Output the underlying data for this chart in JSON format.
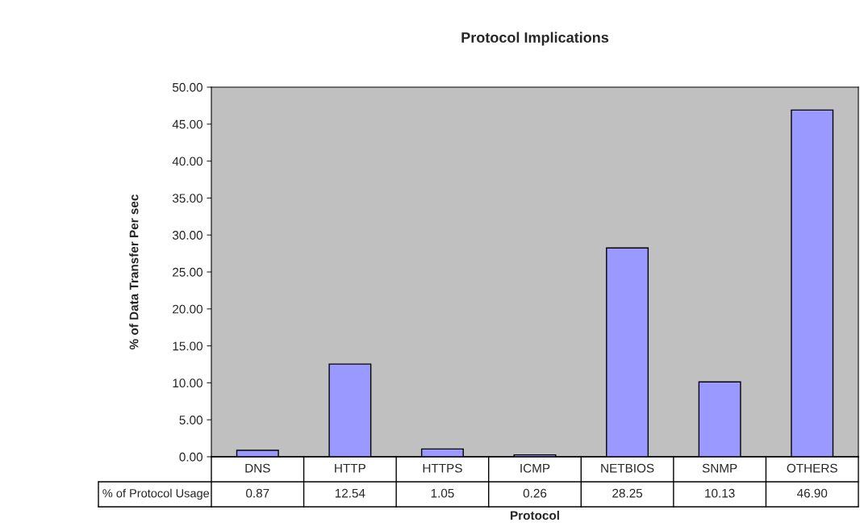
{
  "chart_data": {
    "type": "bar",
    "title": "Protocol Implications",
    "xlabel": "Protocol",
    "ylabel": "% of Data Transfer Per sec",
    "categories": [
      "DNS",
      "HTTP",
      "HTTPS",
      "ICMP",
      "NETBIOS",
      "SNMP",
      "OTHERS"
    ],
    "series": [
      {
        "name": "% of Protocol Usage",
        "color": "#9999ff",
        "values": [
          0.87,
          12.54,
          1.05,
          0.26,
          28.25,
          10.13,
          46.9
        ],
        "value_labels": [
          "0.87",
          "12.54",
          "1.05",
          "0.26",
          "28.25",
          "10.13",
          "46.90"
        ]
      }
    ],
    "ylim": [
      0,
      50
    ],
    "yticks": [
      {
        "value": 0,
        "label": "0.00"
      },
      {
        "value": 5,
        "label": "5.00"
      },
      {
        "value": 10,
        "label": "10.00"
      },
      {
        "value": 15,
        "label": "15.00"
      },
      {
        "value": 20,
        "label": "20.00"
      },
      {
        "value": 25,
        "label": "25.00"
      },
      {
        "value": 30,
        "label": "30.00"
      },
      {
        "value": 35,
        "label": "35.00"
      },
      {
        "value": 40,
        "label": "40.00"
      },
      {
        "value": 45,
        "label": "45.00"
      },
      {
        "value": 50,
        "label": "50.00"
      }
    ],
    "legend": "bottom left"
  }
}
